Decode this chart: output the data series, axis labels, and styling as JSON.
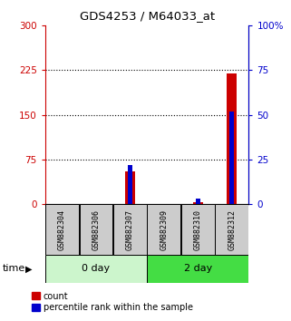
{
  "title": "GDS4253 / M64033_at",
  "samples": [
    "GSM882304",
    "GSM882306",
    "GSM882307",
    "GSM882309",
    "GSM882310",
    "GSM882312"
  ],
  "red_values": [
    0,
    0,
    55,
    0,
    3,
    220
  ],
  "blue_values": [
    0,
    0,
    66,
    0,
    9,
    156
  ],
  "groups": [
    {
      "label": "0 day",
      "indices": [
        0,
        1,
        2
      ],
      "color": "#ccf5cc"
    },
    {
      "label": "2 day",
      "indices": [
        3,
        4,
        5
      ],
      "color": "#44dd44"
    }
  ],
  "ylim_left": [
    0,
    300
  ],
  "ylim_right": [
    0,
    100
  ],
  "yticks_left": [
    0,
    75,
    150,
    225,
    300
  ],
  "yticks_right": [
    0,
    25,
    50,
    75,
    100
  ],
  "left_tick_color": "#cc0000",
  "right_tick_color": "#0000cc",
  "red_bar_color": "#cc0000",
  "blue_bar_color": "#0000cc",
  "grid_color": "#000000",
  "sample_box_color": "#cccccc",
  "legend_red_label": "count",
  "legend_blue_label": "percentile rank within the sample",
  "time_label": "time"
}
